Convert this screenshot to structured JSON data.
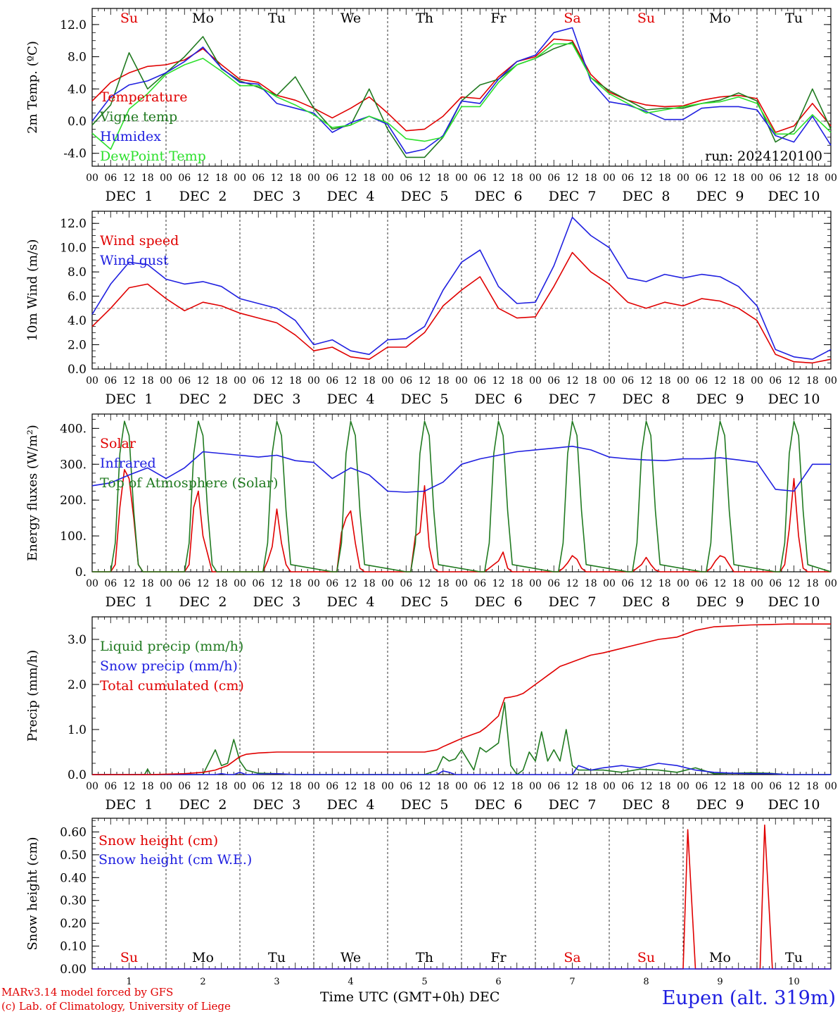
{
  "meta": {
    "run_label": "run: 2024120100",
    "x_axis_title": "Time UTC (GMT+0h) DEC",
    "credit_line1": "MARv3.14 model forced by GFS",
    "credit_line2": "(c) Lab. of Climatology, University of Liege",
    "station": "Eupen (alt. 319m)"
  },
  "days": {
    "names": [
      "Su",
      "Mo",
      "Tu",
      "We",
      "Th",
      "Fr",
      "Sa",
      "Su",
      "Mo",
      "Tu"
    ],
    "name_colors": [
      "#e00000",
      "#000000",
      "#000000",
      "#000000",
      "#000000",
      "#000000",
      "#e00000",
      "#e00000",
      "#000000",
      "#000000"
    ],
    "date_labels": [
      "DEC  1",
      "DEC  2",
      "DEC  3",
      "DEC  4",
      "DEC  5",
      "DEC  6",
      "DEC  7",
      "DEC  8",
      "DEC  9",
      "DEC 10"
    ],
    "numbers": [
      "1",
      "2",
      "3",
      "4",
      "5",
      "6",
      "7",
      "8",
      "9",
      "10"
    ],
    "hour_ticks": [
      "00",
      "06",
      "12",
      "18"
    ],
    "last_hour": "00"
  },
  "chart_data": [
    {
      "type": "line",
      "ylabel": "2m Temp. (ºC)",
      "ylim": [
        -5.6,
        14.0
      ],
      "yticks": [
        -4,
        0,
        4,
        8,
        12
      ],
      "ytick_labels": [
        "-4.0",
        "0.0",
        "4.0",
        "8.0",
        "12.0"
      ],
      "ref_line": 0,
      "x_hours": [
        0,
        6,
        12,
        18,
        24,
        30,
        36,
        42,
        48,
        54,
        60,
        66,
        72,
        78,
        84,
        90,
        96,
        102,
        108,
        114,
        120,
        126,
        132,
        138,
        144,
        150,
        156,
        162,
        168,
        174,
        180,
        186,
        192,
        198,
        204,
        210,
        216,
        222,
        228,
        234,
        240
      ],
      "series": [
        {
          "name": "Temperature",
          "color": "#e00000",
          "values": [
            2.5,
            4.8,
            6.0,
            6.8,
            7.0,
            7.6,
            9.0,
            7.0,
            5.2,
            4.8,
            3.2,
            2.6,
            1.6,
            0.4,
            1.6,
            3.0,
            1.0,
            -1.2,
            -1.0,
            0.6,
            3.0,
            2.8,
            5.5,
            7.4,
            8.0,
            10.2,
            10.0,
            5.8,
            3.6,
            2.6,
            2.0,
            1.8,
            1.9,
            2.6,
            3.0,
            3.2,
            2.8,
            -1.4,
            -0.6,
            2.2,
            -0.6
          ]
        },
        {
          "name": "Vigne temp",
          "color": "#207a20",
          "values": [
            -0.5,
            2.0,
            8.5,
            4.0,
            6.0,
            8.0,
            10.5,
            6.5,
            5.0,
            4.2,
            3.2,
            5.5,
            1.6,
            -1.0,
            -0.5,
            4.0,
            -1.0,
            -4.5,
            -4.5,
            -2.0,
            2.5,
            4.5,
            5.2,
            7.0,
            7.8,
            9.0,
            9.8,
            5.4,
            3.8,
            2.6,
            1.4,
            1.6,
            1.6,
            2.2,
            2.6,
            3.5,
            2.5,
            -2.6,
            -1.2,
            4.0,
            -1.0
          ]
        },
        {
          "name": "Humidex",
          "color": "#2020e0",
          "values": [
            0.0,
            3.0,
            4.5,
            5.0,
            6.0,
            7.4,
            9.2,
            6.6,
            4.8,
            4.6,
            2.2,
            1.6,
            1.0,
            -1.4,
            -0.2,
            0.6,
            -0.4,
            -4.0,
            -3.5,
            -1.8,
            2.5,
            2.2,
            5.2,
            7.4,
            8.2,
            11.0,
            11.6,
            5.0,
            2.4,
            2.0,
            1.2,
            0.2,
            0.2,
            1.6,
            1.8,
            1.8,
            1.4,
            -1.8,
            -2.6,
            0.6,
            -3.0
          ]
        },
        {
          "name": "DewPoint Temp",
          "color": "#2ce02c",
          "values": [
            -1.5,
            -3.5,
            1.5,
            3.4,
            5.8,
            7.0,
            7.8,
            6.2,
            4.4,
            4.4,
            3.0,
            2.0,
            0.8,
            -0.8,
            -0.5,
            0.6,
            -0.2,
            -2.2,
            -2.5,
            -2.0,
            1.8,
            1.8,
            4.8,
            7.0,
            7.8,
            9.6,
            9.6,
            5.4,
            3.4,
            2.2,
            1.0,
            1.4,
            1.8,
            2.2,
            2.4,
            3.0,
            2.2,
            -1.6,
            -1.6,
            0.8,
            -1.4
          ]
        }
      ]
    },
    {
      "type": "line",
      "ylabel": "10m Wind (m/s)",
      "ylim": [
        0,
        13.0
      ],
      "yticks": [
        0,
        2,
        4,
        6,
        8,
        10,
        12
      ],
      "ytick_labels": [
        "0.0",
        "2.0",
        "4.0",
        "6.0",
        "8.0",
        "10.0",
        "12.0"
      ],
      "ref_line": 5,
      "x_hours": [
        0,
        6,
        12,
        18,
        24,
        30,
        36,
        42,
        48,
        54,
        60,
        66,
        72,
        78,
        84,
        90,
        96,
        102,
        108,
        114,
        120,
        126,
        132,
        138,
        144,
        150,
        156,
        162,
        168,
        174,
        180,
        186,
        192,
        198,
        204,
        210,
        216,
        222,
        228,
        234,
        240
      ],
      "series": [
        {
          "name": "Wind speed",
          "color": "#e00000",
          "values": [
            3.5,
            5.0,
            6.7,
            7.0,
            5.8,
            4.8,
            5.5,
            5.2,
            4.6,
            4.2,
            3.8,
            2.8,
            1.5,
            1.8,
            1.0,
            0.8,
            1.8,
            1.8,
            3.0,
            5.2,
            6.5,
            7.6,
            5.0,
            4.2,
            4.3,
            6.8,
            9.6,
            8.0,
            7.0,
            5.5,
            5.0,
            5.5,
            5.2,
            5.8,
            5.6,
            5.0,
            4.0,
            1.2,
            0.6,
            0.5,
            0.8
          ]
        },
        {
          "name": "Wind gust",
          "color": "#2020e0",
          "values": [
            4.5,
            7.0,
            8.8,
            8.6,
            7.4,
            7.0,
            7.2,
            6.8,
            5.8,
            5.4,
            5.0,
            4.0,
            2.0,
            2.4,
            1.5,
            1.2,
            2.4,
            2.5,
            3.5,
            6.5,
            8.8,
            9.8,
            6.8,
            5.4,
            5.5,
            8.5,
            12.5,
            11.0,
            10.0,
            7.5,
            7.2,
            7.8,
            7.5,
            7.8,
            7.6,
            6.8,
            5.2,
            1.6,
            1.0,
            0.8,
            1.6
          ]
        }
      ]
    },
    {
      "type": "line",
      "ylabel": "Energy fluxes (W/m²)",
      "ylim": [
        0,
        440
      ],
      "yticks": [
        0,
        100,
        200,
        300,
        400
      ],
      "ytick_labels": [
        "0.",
        "100.",
        "200.",
        "300.",
        "400."
      ],
      "x_hours": [
        0,
        6,
        7.5,
        9,
        10.5,
        12,
        13.5,
        15,
        16.5,
        18,
        30,
        31.5,
        33,
        34.5,
        36,
        37.5,
        39,
        40.5,
        54,
        55.5,
        57,
        58.5,
        60,
        61.5,
        63,
        64.5,
        78,
        79.5,
        81,
        82.5,
        84,
        85.5,
        87,
        88.5,
        102,
        103.5,
        105,
        106.5,
        108,
        109.5,
        111,
        112.5,
        126,
        127.5,
        129,
        130.5,
        132,
        133.5,
        135,
        136.5,
        150,
        151.5,
        153,
        154.5,
        156,
        157.5,
        159,
        160.5,
        174,
        175.5,
        177,
        178.5,
        180,
        181.5,
        183,
        184.5,
        198,
        199.5,
        201,
        202.5,
        204,
        205.5,
        207,
        208.5,
        222,
        223.5,
        225,
        226.5,
        228,
        229.5,
        231,
        232.5,
        240
      ],
      "series": [
        {
          "name": "Solar",
          "color": "#e00000",
          "values": [
            0,
            0,
            20,
            180,
            285,
            260,
            150,
            20,
            0,
            0,
            0,
            20,
            180,
            225,
            100,
            50,
            0,
            0,
            0,
            0,
            30,
            70,
            175,
            80,
            20,
            0,
            0,
            0,
            110,
            150,
            170,
            80,
            10,
            0,
            0,
            0,
            100,
            110,
            240,
            70,
            10,
            0,
            0,
            0,
            10,
            20,
            30,
            55,
            10,
            0,
            0,
            0,
            10,
            25,
            45,
            35,
            10,
            0,
            0,
            0,
            10,
            20,
            40,
            20,
            5,
            0,
            0,
            0,
            10,
            30,
            45,
            40,
            20,
            0,
            0,
            0,
            20,
            120,
            260,
            100,
            10,
            0,
            0
          ]
        },
        {
          "name": "Top of Atmosphere (Solar)",
          "color": "#207a20",
          "values": [
            0,
            0,
            80,
            330,
            420,
            380,
            170,
            20,
            0,
            0,
            0,
            80,
            330,
            420,
            380,
            170,
            20,
            0,
            0,
            0,
            80,
            330,
            420,
            380,
            170,
            20,
            0,
            0,
            80,
            330,
            420,
            380,
            170,
            20,
            0,
            0,
            80,
            330,
            420,
            380,
            170,
            20,
            0,
            0,
            80,
            330,
            420,
            380,
            170,
            20,
            0,
            0,
            80,
            330,
            420,
            380,
            170,
            20,
            0,
            0,
            80,
            330,
            420,
            380,
            170,
            20,
            0,
            0,
            80,
            330,
            420,
            380,
            170,
            20,
            0,
            0,
            80,
            330,
            420,
            380,
            170,
            20,
            0
          ]
        }
      ],
      "infrared": {
        "name": "Infrared",
        "color": "#2020e0",
        "x_hours": [
          0,
          6,
          12,
          18,
          24,
          30,
          36,
          42,
          48,
          54,
          60,
          66,
          72,
          78,
          84,
          90,
          96,
          102,
          108,
          114,
          120,
          126,
          132,
          138,
          144,
          150,
          156,
          162,
          168,
          174,
          180,
          186,
          192,
          198,
          204,
          210,
          216,
          222,
          228,
          234,
          240
        ],
        "values": [
          240,
          248,
          270,
          290,
          260,
          290,
          335,
          330,
          325,
          320,
          325,
          310,
          305,
          260,
          290,
          270,
          225,
          222,
          225,
          250,
          300,
          315,
          325,
          335,
          340,
          345,
          350,
          340,
          320,
          315,
          312,
          310,
          315,
          315,
          318,
          312,
          305,
          230,
          225,
          300,
          300
        ]
      }
    },
    {
      "type": "line",
      "ylabel": "Precip (mm/h)",
      "ylim": [
        0,
        3.5
      ],
      "yticks": [
        0,
        1,
        2,
        3
      ],
      "ytick_labels": [
        "0.0",
        "1.0",
        "2.0",
        "3.0"
      ],
      "x_hours": [
        0,
        6,
        12,
        17,
        18,
        19,
        24,
        30,
        36,
        40,
        42,
        44,
        46,
        48,
        50,
        54,
        60,
        66,
        72,
        78,
        84,
        90,
        96,
        102,
        108,
        112,
        114,
        116,
        118,
        120,
        124,
        126,
        128,
        132,
        134,
        136,
        138,
        140,
        142,
        144,
        146,
        148,
        150,
        152,
        154,
        156,
        158,
        160,
        162,
        166,
        172,
        178,
        184,
        190,
        196,
        202,
        208,
        214,
        220,
        226,
        232,
        240
      ],
      "series": [
        {
          "name": "Liquid precip (mm/h)",
          "color": "#207a20",
          "values": [
            0,
            0,
            0,
            0,
            0.12,
            0,
            0,
            0,
            0,
            0.55,
            0.2,
            0.25,
            0.78,
            0.3,
            0.1,
            0.03,
            0.02,
            0,
            0,
            0,
            0,
            0,
            0,
            0,
            0,
            0.1,
            0.4,
            0.3,
            0.35,
            0.55,
            0.1,
            0.6,
            0.5,
            0.7,
            1.6,
            0.2,
            0,
            0.1,
            0.5,
            0.3,
            0.95,
            0.3,
            0.55,
            0.3,
            1.0,
            0.2,
            0.1,
            0.1,
            0.1,
            0.1,
            0.05,
            0.12,
            0.1,
            0.05,
            0.15,
            0.02,
            0.03,
            0.04,
            0.03,
            0,
            0,
            0
          ]
        },
        {
          "name": "Snow precip (mm/h)",
          "color": "#2020e0",
          "values": [
            0,
            0,
            0,
            0,
            0,
            0,
            0,
            0,
            0,
            0,
            0.02,
            0,
            0,
            0.05,
            0,
            0.01,
            0.02,
            0,
            0,
            0,
            0,
            0,
            0,
            0,
            0,
            0,
            0.08,
            0.05,
            0,
            0,
            0,
            0,
            0,
            0,
            0,
            0,
            0,
            0,
            0,
            0,
            0,
            0,
            0,
            0,
            0,
            0,
            0.2,
            0.15,
            0.1,
            0.15,
            0.2,
            0.15,
            0.25,
            0.2,
            0.1,
            0.05,
            0.03,
            0.02,
            0.02,
            0,
            0,
            0
          ]
        },
        {
          "name": "Total cumulated (cm)",
          "color": "#e00000",
          "values": [
            0,
            0,
            0,
            0,
            0,
            0,
            0.01,
            0.02,
            0.05,
            0.1,
            0.15,
            0.2,
            0.3,
            0.4,
            0.45,
            0.48,
            0.5,
            0.5,
            0.5,
            0.5,
            0.5,
            0.5,
            0.5,
            0.5,
            0.5,
            0.55,
            0.62,
            0.68,
            0.74,
            0.8,
            0.9,
            0.95,
            1.05,
            1.3,
            1.7,
            1.72,
            1.75,
            1.8,
            1.9,
            2.0,
            2.1,
            2.2,
            2.3,
            2.4,
            2.45,
            2.5,
            2.55,
            2.6,
            2.65,
            2.7,
            2.8,
            2.9,
            3.0,
            3.05,
            3.2,
            3.28,
            3.3,
            3.32,
            3.33,
            3.34,
            3.34,
            3.34
          ]
        }
      ]
    },
    {
      "type": "line",
      "ylabel": "Snow height (cm)",
      "ylim": [
        0,
        0.66
      ],
      "yticks": [
        0,
        0.1,
        0.2,
        0.3,
        0.4,
        0.5,
        0.6
      ],
      "ytick_labels": [
        "0.00",
        "0.10",
        "0.20",
        "0.30",
        "0.40",
        "0.50",
        "0.60"
      ],
      "x_hours": [
        0,
        190,
        192,
        193.5,
        196,
        215,
        217,
        218.5,
        221,
        240
      ],
      "series": [
        {
          "name": "Snow height (cm)",
          "color": "#e00000",
          "values": [
            0,
            0,
            0,
            0.61,
            0,
            0,
            0,
            0.63,
            0,
            0
          ]
        },
        {
          "name": "Snow height (cm W.E.)",
          "color": "#2020e0",
          "values": [
            0,
            0,
            0,
            0,
            0,
            0,
            0,
            0,
            0,
            0
          ]
        }
      ]
    }
  ]
}
